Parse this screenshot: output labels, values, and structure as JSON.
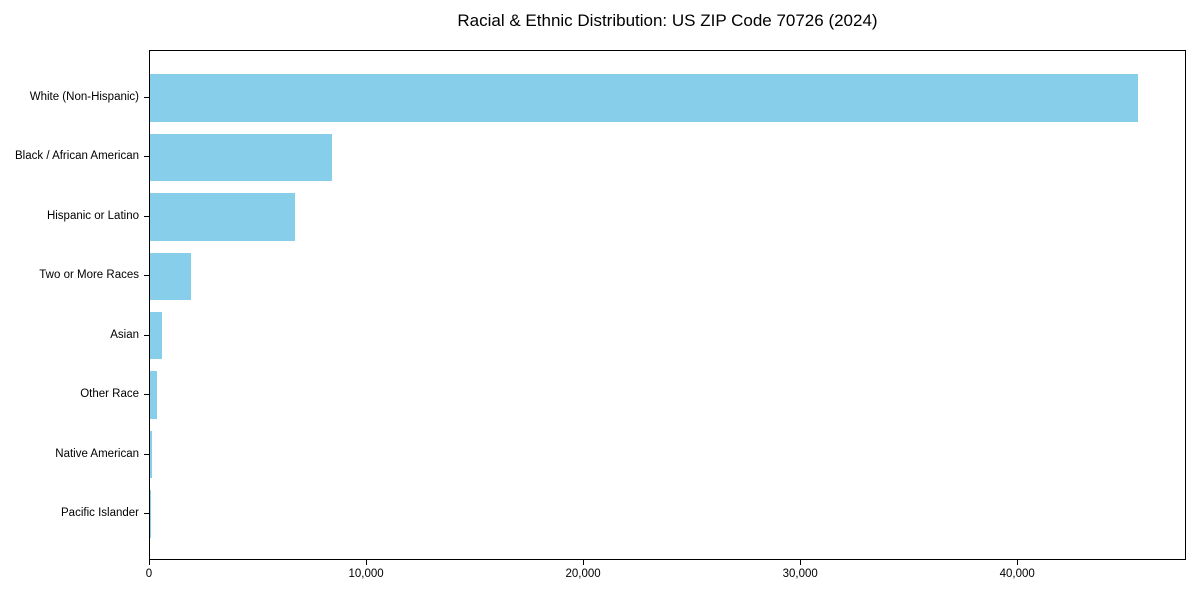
{
  "chart_data": {
    "type": "bar",
    "orientation": "horizontal",
    "title": "Racial & Ethnic Distribution: US ZIP Code 70726 (2024)",
    "categories": [
      "White (Non-Hispanic)",
      "Black / African American",
      "Hispanic or Latino",
      "Two or More Races",
      "Asian",
      "Other Race",
      "Native American",
      "Pacific Islander"
    ],
    "values": [
      45500,
      8400,
      6700,
      1900,
      550,
      320,
      100,
      25
    ],
    "xlabel": "",
    "ylabel": "",
    "xlim": [
      0,
      47775
    ],
    "xticks": [
      0,
      10000,
      20000,
      30000,
      40000
    ],
    "xtick_labels": [
      "0",
      "10,000",
      "20,000",
      "30,000",
      "40,000"
    ],
    "bar_color": "#87CEEB",
    "spine_color": "#000000",
    "background_color": "#FFFFFF",
    "grid": false,
    "legend": "none"
  }
}
